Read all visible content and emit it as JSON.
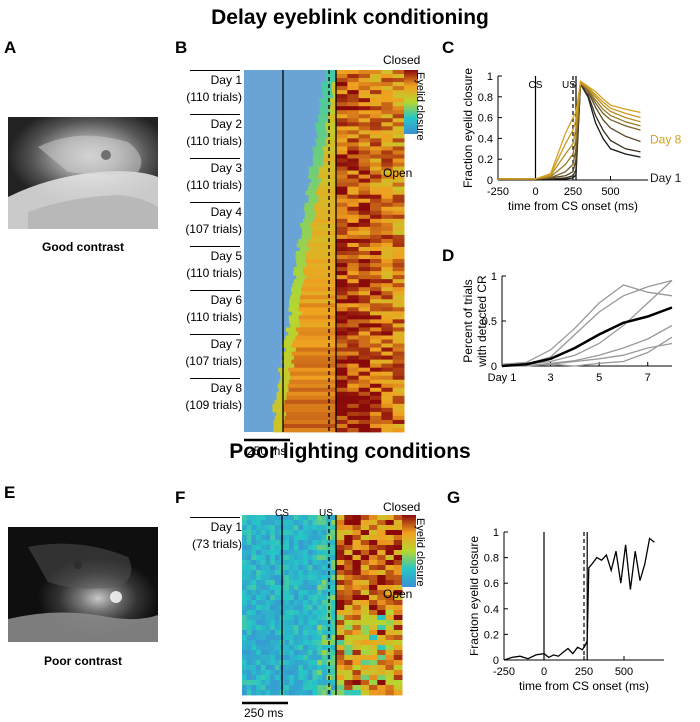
{
  "figure": {
    "top_title": "Delay eyeblink conditioning",
    "bottom_title": "Poor lighting conditions"
  },
  "panels": {
    "A": {
      "label": "A",
      "caption": "Good contrast"
    },
    "B": {
      "label": "B",
      "days": [
        {
          "day": "Day 1",
          "trials": "(110 trials)"
        },
        {
          "day": "Day 2",
          "trials": "(110 trials)"
        },
        {
          "day": "Day 3",
          "trials": "(110 trials)"
        },
        {
          "day": "Day 4",
          "trials": "(107 trials)"
        },
        {
          "day": "Day 5",
          "trials": "(110 trials)"
        },
        {
          "day": "Day 6",
          "trials": "(110 trials)"
        },
        {
          "day": "Day 7",
          "trials": "(107 trials)"
        },
        {
          "day": "Day 8",
          "trials": "(109 trials)"
        }
      ],
      "colorbar_top": "Closed",
      "colorbar_bottom": "Open",
      "colorbar_label": "Eyelid closure",
      "scalebar": "250 ms"
    },
    "C": {
      "label": "C"
    },
    "D": {
      "label": "D"
    },
    "E": {
      "label": "E",
      "caption": "Poor contrast"
    },
    "F": {
      "label": "F",
      "days": [
        {
          "day": "Day 1",
          "trials": "(73 trials)"
        }
      ],
      "cs_label": "CS",
      "us_label": "US",
      "colorbar_top": "Closed",
      "colorbar_bottom": "Open",
      "colorbar_label": "Eyelid closure",
      "scalebar": "250 ms"
    },
    "G": {
      "label": "G"
    }
  },
  "colors": {
    "early_day": "#1a1a1a",
    "late_day": "#d4a020",
    "mean_line": "#000000",
    "individual": "#999999"
  },
  "chart_data": [
    {
      "id": "C",
      "type": "line",
      "title": "",
      "xlabel": "time from CS onset (ms)",
      "ylabel": "Fraction eyelid closure",
      "xlim": [
        -250,
        750
      ],
      "ylim": [
        0,
        1
      ],
      "xticks": [
        -250,
        0,
        250,
        500
      ],
      "yticks": [
        0,
        0.2,
        0.4,
        0.6,
        0.8,
        1
      ],
      "ytick_labels": [
        "0",
        "0.2",
        "0.4",
        "0.6",
        "0.8",
        "1"
      ],
      "markers": [
        {
          "x": 0,
          "label": "CS",
          "style": "solid"
        },
        {
          "x": 250,
          "label": "US",
          "style": "dashed"
        },
        {
          "x": 270,
          "label": "",
          "style": "solid"
        }
      ],
      "legend": [
        {
          "name": "Day 8",
          "color": "#d4a020"
        },
        {
          "name": "Day 1",
          "color": "#1a1a1a"
        }
      ],
      "series": [
        {
          "name": "Day 1",
          "color": "#1a1a1a",
          "x": [
            -250,
            0,
            100,
            200,
            250,
            270,
            300,
            350,
            400,
            450,
            500,
            600,
            700
          ],
          "y": [
            0.01,
            0.01,
            0.01,
            0.01,
            0.02,
            0.05,
            0.92,
            0.8,
            0.55,
            0.4,
            0.3,
            0.25,
            0.22
          ]
        },
        {
          "name": "Day 2",
          "color": "#3a3020",
          "x": [
            -250,
            0,
            100,
            200,
            250,
            270,
            300,
            350,
            400,
            450,
            500,
            600,
            700
          ],
          "y": [
            0.01,
            0.01,
            0.01,
            0.02,
            0.04,
            0.1,
            0.92,
            0.82,
            0.62,
            0.48,
            0.38,
            0.3,
            0.27
          ]
        },
        {
          "name": "Day 3",
          "color": "#5a4a25",
          "x": [
            -250,
            0,
            100,
            200,
            250,
            270,
            300,
            350,
            400,
            450,
            500,
            600,
            700
          ],
          "y": [
            0.01,
            0.01,
            0.02,
            0.04,
            0.08,
            0.2,
            0.93,
            0.85,
            0.7,
            0.58,
            0.5,
            0.42,
            0.37
          ]
        },
        {
          "name": "Day 4",
          "color": "#7a6328",
          "x": [
            -250,
            0,
            100,
            200,
            250,
            270,
            300,
            350,
            400,
            450,
            500,
            600,
            700
          ],
          "y": [
            0.01,
            0.01,
            0.02,
            0.08,
            0.15,
            0.3,
            0.93,
            0.86,
            0.74,
            0.64,
            0.58,
            0.52,
            0.48
          ]
        },
        {
          "name": "Day 5",
          "color": "#9a7b28",
          "x": [
            -250,
            0,
            100,
            200,
            250,
            270,
            300,
            350,
            400,
            450,
            500,
            600,
            700
          ],
          "y": [
            0.01,
            0.01,
            0.03,
            0.15,
            0.25,
            0.4,
            0.93,
            0.87,
            0.77,
            0.68,
            0.62,
            0.56,
            0.52
          ]
        },
        {
          "name": "Day 6",
          "color": "#b88f25",
          "x": [
            -250,
            0,
            100,
            200,
            250,
            270,
            300,
            350,
            400,
            450,
            500,
            600,
            700
          ],
          "y": [
            0.01,
            0.01,
            0.04,
            0.25,
            0.35,
            0.5,
            0.94,
            0.88,
            0.8,
            0.72,
            0.66,
            0.6,
            0.56
          ]
        },
        {
          "name": "Day 7",
          "color": "#c99a22",
          "x": [
            -250,
            0,
            100,
            200,
            250,
            270,
            300,
            350,
            400,
            450,
            500,
            600,
            700
          ],
          "y": [
            0.01,
            0.01,
            0.05,
            0.35,
            0.48,
            0.58,
            0.94,
            0.89,
            0.82,
            0.75,
            0.69,
            0.64,
            0.6
          ]
        },
        {
          "name": "Day 8",
          "color": "#d4a020",
          "x": [
            -250,
            0,
            100,
            200,
            250,
            270,
            300,
            350,
            400,
            450,
            500,
            600,
            700
          ],
          "y": [
            0.01,
            0.01,
            0.06,
            0.45,
            0.6,
            0.65,
            0.95,
            0.9,
            0.85,
            0.78,
            0.72,
            0.68,
            0.65
          ]
        }
      ]
    },
    {
      "id": "D",
      "type": "line",
      "title": "",
      "xlabel": "",
      "ylabel": "Percent of trials with detected CR",
      "xlim": [
        1,
        8
      ],
      "ylim": [
        0,
        1
      ],
      "xticks": [
        1,
        3,
        5,
        7
      ],
      "xtick_labels": [
        "Day 1",
        "3",
        "5",
        "7"
      ],
      "yticks": [
        0,
        0.5,
        1
      ],
      "ytick_labels": [
        "0",
        "0.5",
        "1"
      ],
      "series": [
        {
          "name": "mouse 1",
          "color": "#999999",
          "x": [
            1,
            2,
            3,
            4,
            5,
            6,
            7,
            8
          ],
          "y": [
            0.0,
            0.02,
            0.05,
            0.12,
            0.25,
            0.45,
            0.7,
            0.95
          ]
        },
        {
          "name": "mouse 2",
          "color": "#999999",
          "x": [
            1,
            2,
            3,
            4,
            5,
            6,
            7,
            8
          ],
          "y": [
            0.02,
            0.04,
            0.18,
            0.42,
            0.7,
            0.9,
            0.82,
            0.78
          ]
        },
        {
          "name": "mouse 3",
          "color": "#999999",
          "x": [
            1,
            2,
            3,
            4,
            5,
            6,
            7,
            8
          ],
          "y": [
            0.0,
            0.02,
            0.1,
            0.35,
            0.6,
            0.78,
            0.88,
            0.95
          ]
        },
        {
          "name": "mouse 4",
          "color": "#999999",
          "x": [
            1,
            2,
            3,
            4,
            5,
            6,
            7,
            8
          ],
          "y": [
            0.0,
            0.0,
            0.03,
            0.06,
            0.12,
            0.2,
            0.3,
            0.45
          ]
        },
        {
          "name": "mouse 5",
          "color": "#999999",
          "x": [
            1,
            2,
            3,
            4,
            5,
            6,
            7,
            8
          ],
          "y": [
            0.0,
            0.01,
            0.02,
            0.05,
            0.08,
            0.12,
            0.2,
            0.25
          ]
        },
        {
          "name": "mouse 6",
          "color": "#999999",
          "x": [
            1,
            2,
            3,
            4,
            5,
            6,
            7,
            8
          ],
          "y": [
            0.0,
            0.0,
            0.02,
            0.0,
            0.03,
            0.05,
            0.15,
            0.32
          ]
        },
        {
          "name": "mean",
          "color": "#000000",
          "width": 2.5,
          "x": [
            1,
            2,
            3,
            4,
            5,
            6,
            7,
            8
          ],
          "y": [
            0.0,
            0.02,
            0.08,
            0.2,
            0.35,
            0.48,
            0.55,
            0.65
          ]
        }
      ]
    },
    {
      "id": "G",
      "type": "line",
      "title": "",
      "xlabel": "time from CS onset (ms)",
      "ylabel": "Fraction eyelid closure",
      "xlim": [
        -250,
        750
      ],
      "ylim": [
        0,
        1
      ],
      "xticks": [
        -250,
        0,
        250,
        500
      ],
      "yticks": [
        0,
        0.2,
        0.4,
        0.6,
        0.8,
        1
      ],
      "ytick_labels": [
        "0",
        "0.2",
        "0.4",
        "0.6",
        "0.8",
        "1"
      ],
      "markers": [
        {
          "x": 0,
          "style": "solid"
        },
        {
          "x": 250,
          "style": "dashed"
        },
        {
          "x": 270,
          "style": "solid"
        }
      ],
      "series": [
        {
          "name": "Day 1",
          "color": "#000000",
          "x": [
            -250,
            -200,
            -150,
            -100,
            -50,
            0,
            30,
            60,
            90,
            120,
            150,
            180,
            210,
            240,
            260,
            270,
            280,
            300,
            330,
            360,
            390,
            420,
            450,
            480,
            510,
            540,
            570,
            600,
            630,
            660,
            690
          ],
          "y": [
            0.0,
            0.02,
            0.03,
            0.01,
            0.04,
            0.05,
            0.02,
            0.04,
            0.03,
            0.06,
            0.09,
            0.05,
            0.1,
            0.08,
            0.12,
            0.15,
            0.72,
            0.75,
            0.8,
            0.78,
            0.82,
            0.7,
            0.85,
            0.6,
            0.9,
            0.55,
            0.85,
            0.62,
            0.75,
            0.95,
            0.92
          ]
        }
      ]
    }
  ]
}
